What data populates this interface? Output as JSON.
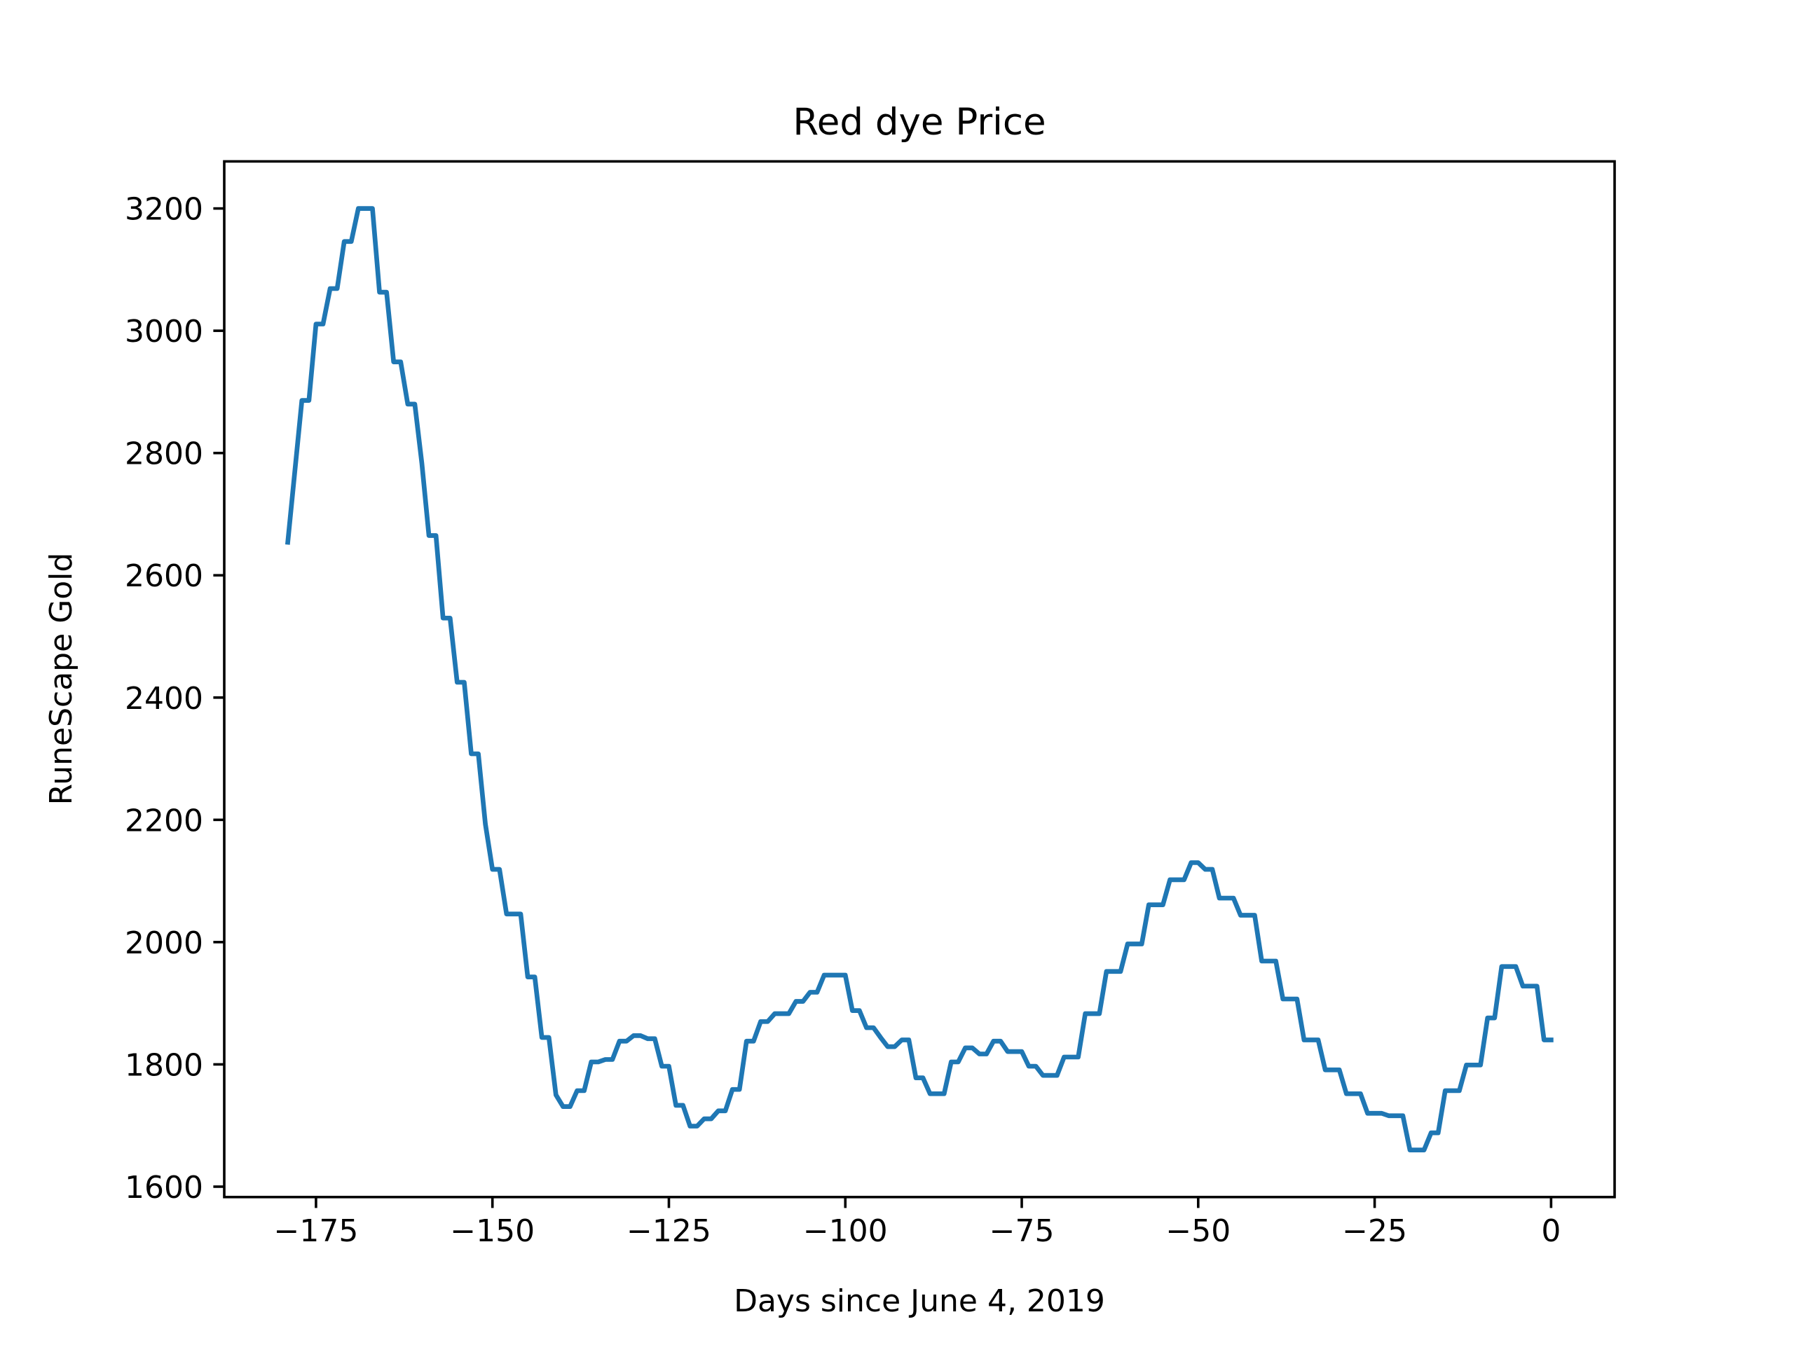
{
  "chart_data": {
    "type": "line",
    "title": "Red dye Price",
    "x_label": "Days since June 4, 2019",
    "y_label": "RuneScape Gold",
    "x": [
      -179,
      -178,
      -177,
      -176,
      -175,
      -174,
      -173,
      -172,
      -171,
      -170,
      -169,
      -168,
      -167,
      -166,
      -165,
      -164,
      -163,
      -162,
      -161,
      -160,
      -159,
      -158,
      -157,
      -156,
      -155,
      -154,
      -153,
      -152,
      -151,
      -150,
      -149,
      -148,
      -147,
      -146,
      -145,
      -144,
      -143,
      -142,
      -141,
      -140,
      -139,
      -138,
      -137,
      -136,
      -135,
      -134,
      -133,
      -132,
      -131,
      -130,
      -129,
      -128,
      -127,
      -126,
      -125,
      -124,
      -123,
      -122,
      -121,
      -120,
      -119,
      -118,
      -117,
      -116,
      -115,
      -114,
      -113,
      -112,
      -111,
      -110,
      -109,
      -108,
      -107,
      -106,
      -105,
      -104,
      -103,
      -102,
      -101,
      -100,
      -99,
      -98,
      -97,
      -96,
      -95,
      -94,
      -93,
      -92,
      -91,
      -90,
      -89,
      -88,
      -87,
      -86,
      -85,
      -84,
      -83,
      -82,
      -81,
      -80,
      -79,
      -78,
      -77,
      -76,
      -75,
      -74,
      -73,
      -72,
      -71,
      -70,
      -69,
      -68,
      -67,
      -66,
      -65,
      -64,
      -63,
      -62,
      -61,
      -60,
      -59,
      -58,
      -57,
      -56,
      -55,
      -54,
      -53,
      -52,
      -51,
      -50,
      -49,
      -48,
      -47,
      -46,
      -45,
      -44,
      -43,
      -42,
      -41,
      -40,
      -39,
      -38,
      -37,
      -36,
      -35,
      -34,
      -33,
      -32,
      -31,
      -30,
      -29,
      -28,
      -27,
      -26,
      -25,
      -24,
      -23,
      -22,
      -21,
      -20,
      -19,
      -18,
      -17,
      -16,
      -15,
      -14,
      -13,
      -12,
      -11,
      -10,
      -9,
      -8,
      -7,
      -6,
      -5,
      -4,
      -3,
      -2,
      -1,
      0
    ],
    "series": [
      {
        "color": "#1f77b4",
        "values": [
          2654,
          2770,
          2886,
          2886,
          3011,
          3011,
          3069,
          3069,
          3146,
          3146,
          3200,
          3200,
          3200,
          3063,
          3063,
          2949,
          2949,
          2880,
          2880,
          2783,
          2665,
          2665,
          2530,
          2530,
          2425,
          2425,
          2308,
          2308,
          2193,
          2119,
          2119,
          2046,
          2046,
          2046,
          1943,
          1943,
          1844,
          1844,
          1750,
          1731,
          1731,
          1757,
          1757,
          1804,
          1804,
          1808,
          1808,
          1838,
          1838,
          1847,
          1847,
          1842,
          1842,
          1797,
          1797,
          1733,
          1733,
          1699,
          1699,
          1711,
          1711,
          1724,
          1724,
          1759,
          1759,
          1838,
          1838,
          1870,
          1870,
          1883,
          1883,
          1883,
          1903,
          1903,
          1918,
          1918,
          1946,
          1946,
          1946,
          1946,
          1888,
          1888,
          1860,
          1860,
          1844,
          1829,
          1829,
          1840,
          1840,
          1778,
          1778,
          1752,
          1752,
          1752,
          1804,
          1804,
          1827,
          1827,
          1817,
          1817,
          1838,
          1838,
          1821,
          1821,
          1821,
          1797,
          1797,
          1782,
          1782,
          1782,
          1812,
          1812,
          1812,
          1883,
          1883,
          1883,
          1952,
          1952,
          1952,
          1997,
          1997,
          1997,
          2061,
          2061,
          2061,
          2102,
          2102,
          2102,
          2130,
          2130,
          2119,
          2119,
          2072,
          2072,
          2072,
          2044,
          2044,
          2044,
          1969,
          1969,
          1969,
          1907,
          1907,
          1907,
          1840,
          1840,
          1840,
          1791,
          1791,
          1791,
          1752,
          1752,
          1752,
          1720,
          1720,
          1720,
          1716,
          1716,
          1716,
          1660,
          1660,
          1660,
          1688,
          1688,
          1757,
          1757,
          1757,
          1799,
          1799,
          1799,
          1876,
          1876,
          1960,
          1960,
          1960,
          1928,
          1928,
          1928,
          1840,
          1840
        ]
      }
    ],
    "xlim": [
      -188,
      9
    ],
    "ylim": [
      1583,
      3277
    ],
    "xticks": [
      {
        "value": -175,
        "label": "−175"
      },
      {
        "value": -150,
        "label": "−150"
      },
      {
        "value": -125,
        "label": "−125"
      },
      {
        "value": -100,
        "label": "−100"
      },
      {
        "value": -75,
        "label": "−75"
      },
      {
        "value": -50,
        "label": "−50"
      },
      {
        "value": -25,
        "label": "−25"
      },
      0
    ],
    "yticks": [
      1600,
      1800,
      2000,
      2200,
      2400,
      2600,
      2800,
      3000,
      3200
    ]
  }
}
